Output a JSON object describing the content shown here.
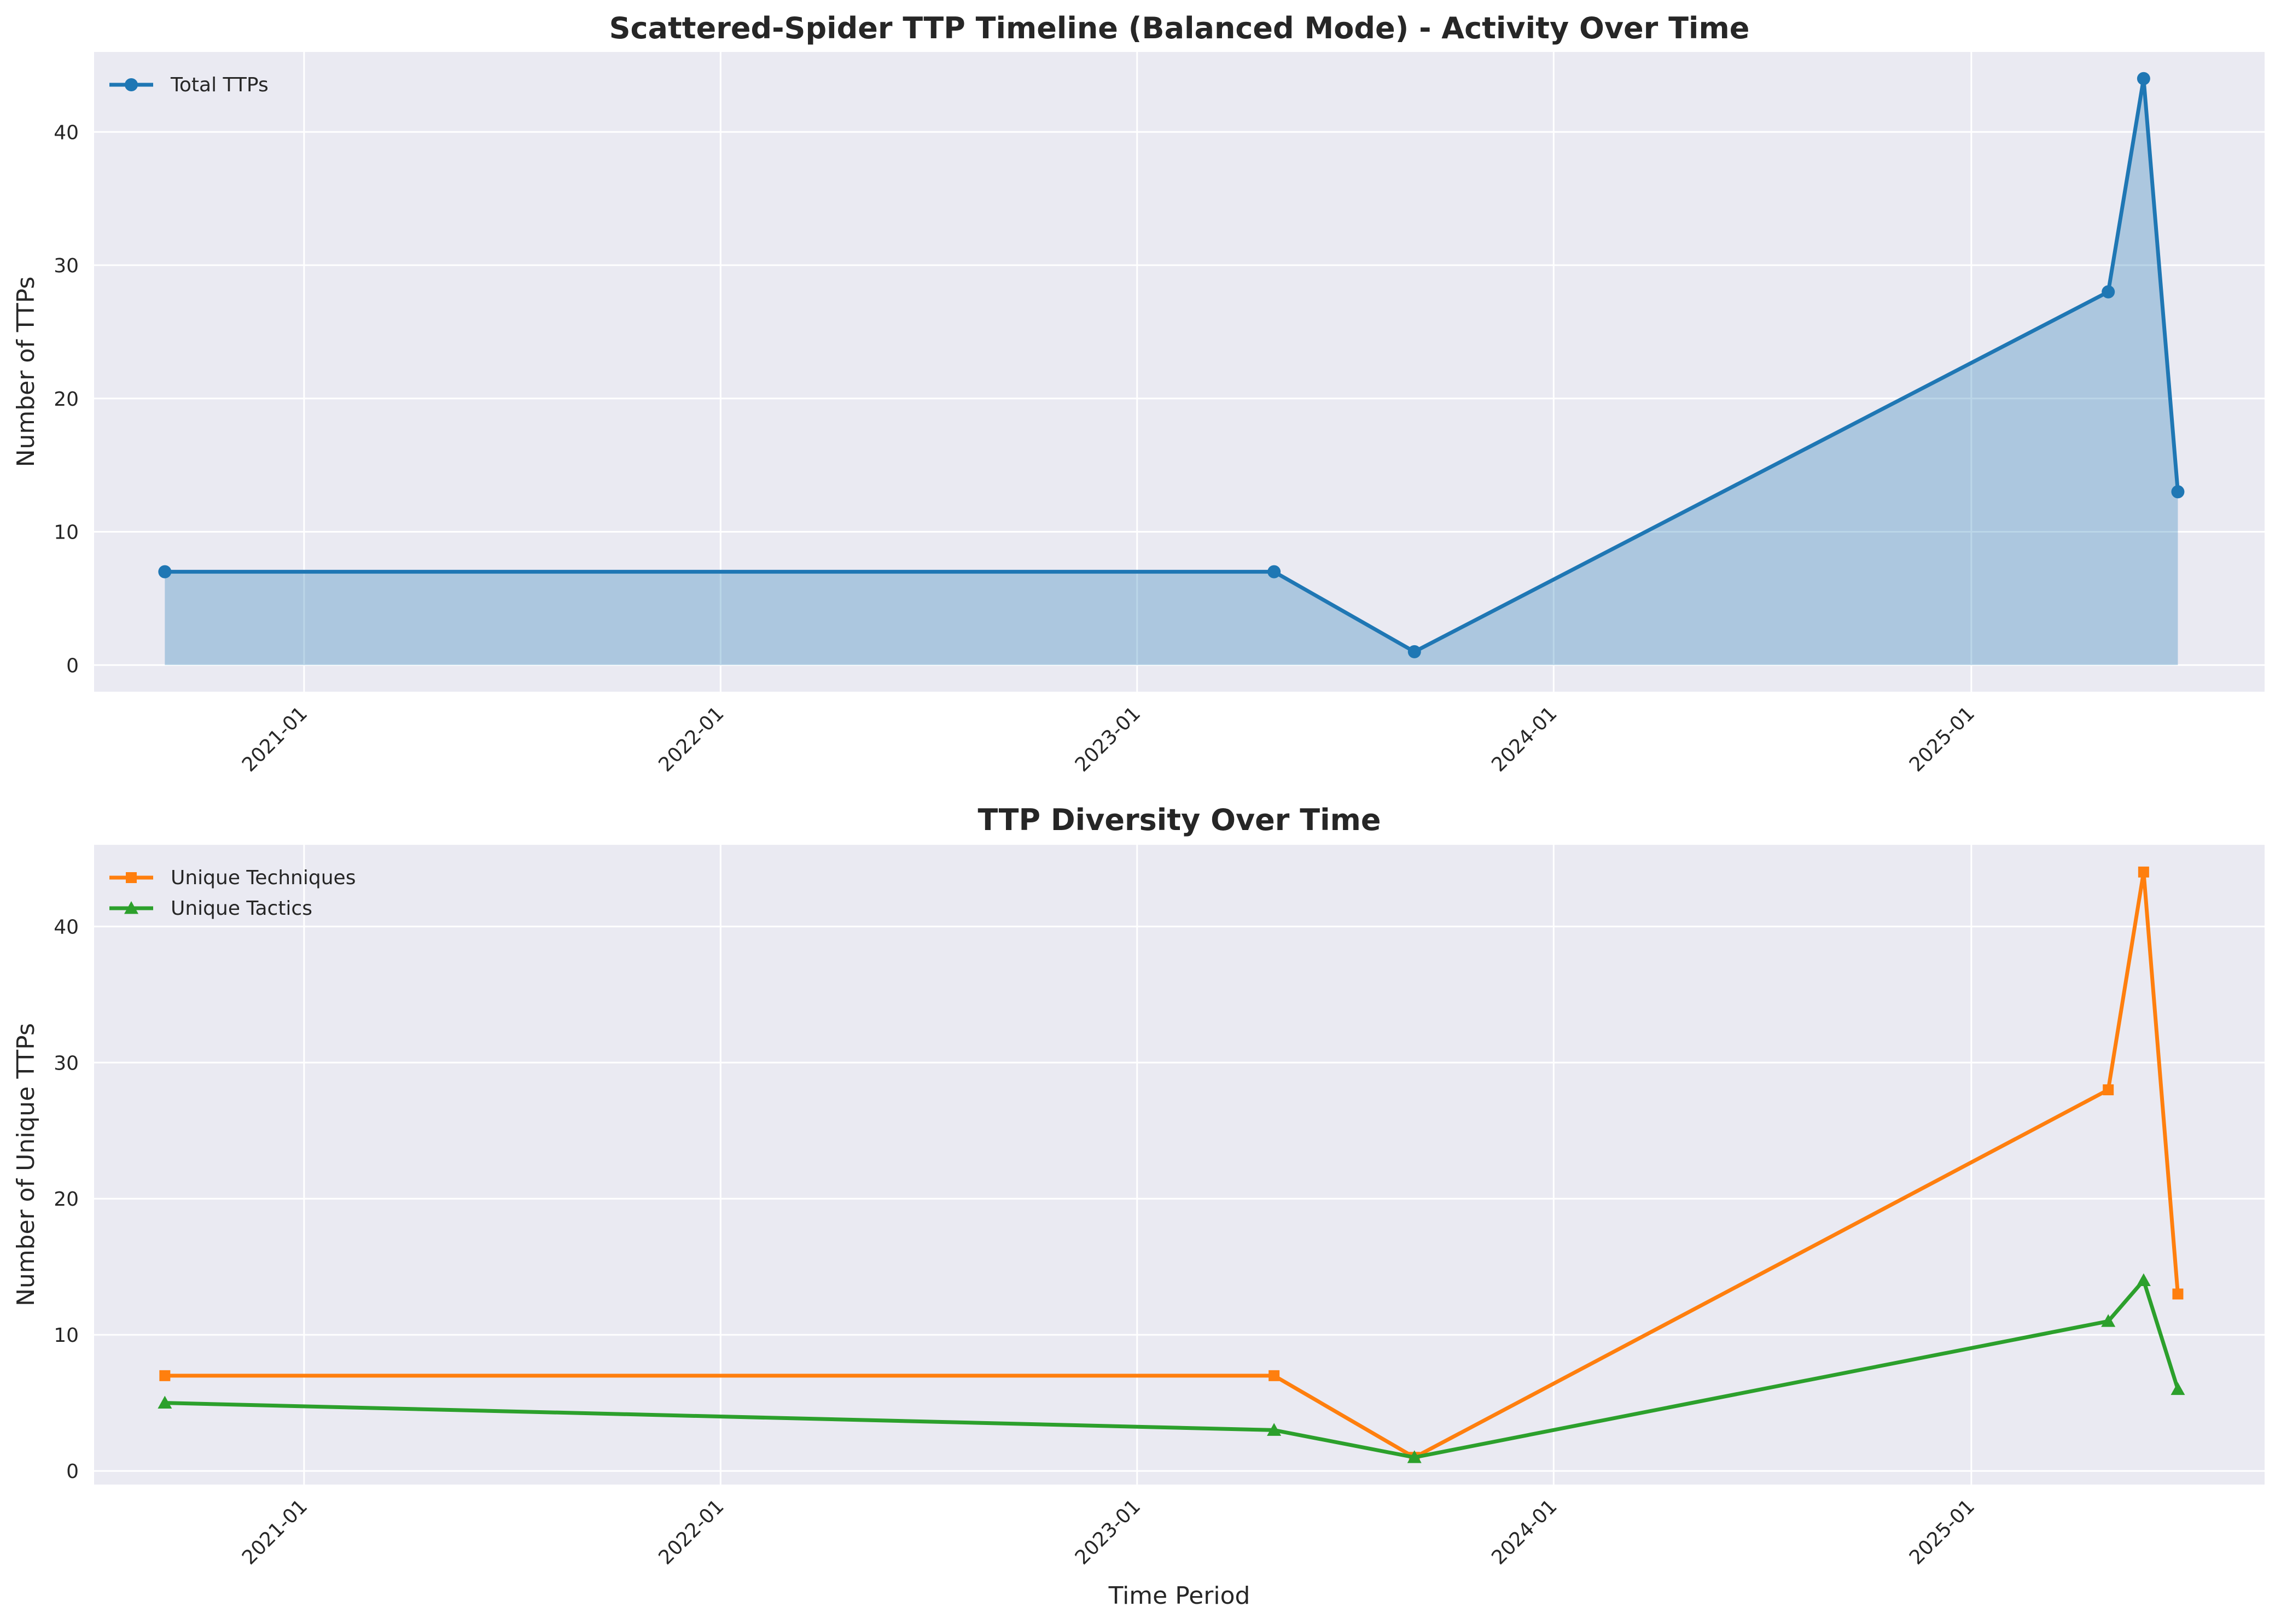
{
  "chart_data": [
    {
      "type": "area",
      "title": "Scattered-Spider TTP Timeline (Balanced Mode) - Activity Over Time",
      "xlabel": "",
      "ylabel": "Number of TTPs",
      "x": [
        "2020-09",
        "2023-05",
        "2023-09",
        "2025-05",
        "2025-06",
        "2025-07"
      ],
      "xticks": [
        "2021-01",
        "2022-01",
        "2023-01",
        "2024-01",
        "2025-01"
      ],
      "xlim": [
        "2020-07-01",
        "2025-09-15"
      ],
      "yticks": [
        0,
        10,
        20,
        30,
        40
      ],
      "ylim": [
        -2,
        46
      ],
      "grid": true,
      "legend_position": "top-left",
      "series": [
        {
          "name": "Total TTPs",
          "color": "#1f77b4",
          "marker": "circle",
          "fill": true,
          "values": [
            7,
            7,
            1,
            28,
            44,
            13
          ]
        }
      ]
    },
    {
      "type": "line",
      "title": "TTP Diversity Over Time",
      "xlabel": "Time Period",
      "ylabel": "Number of Unique TTPs",
      "x": [
        "2020-09",
        "2023-05",
        "2023-09",
        "2025-05",
        "2025-06",
        "2025-07"
      ],
      "xticks": [
        "2021-01",
        "2022-01",
        "2023-01",
        "2024-01",
        "2025-01"
      ],
      "xlim": [
        "2020-07-01",
        "2025-09-15"
      ],
      "yticks": [
        0,
        10,
        20,
        30,
        40
      ],
      "ylim": [
        -1,
        46
      ],
      "grid": true,
      "legend_position": "top-left",
      "series": [
        {
          "name": "Unique Techniques",
          "color": "#ff7f0e",
          "marker": "square",
          "values": [
            7,
            7,
            1,
            28,
            44,
            13
          ]
        },
        {
          "name": "Unique Tactics",
          "color": "#2ca02c",
          "marker": "triangle",
          "values": [
            5,
            3,
            1,
            11,
            14,
            6
          ]
        }
      ]
    }
  ]
}
